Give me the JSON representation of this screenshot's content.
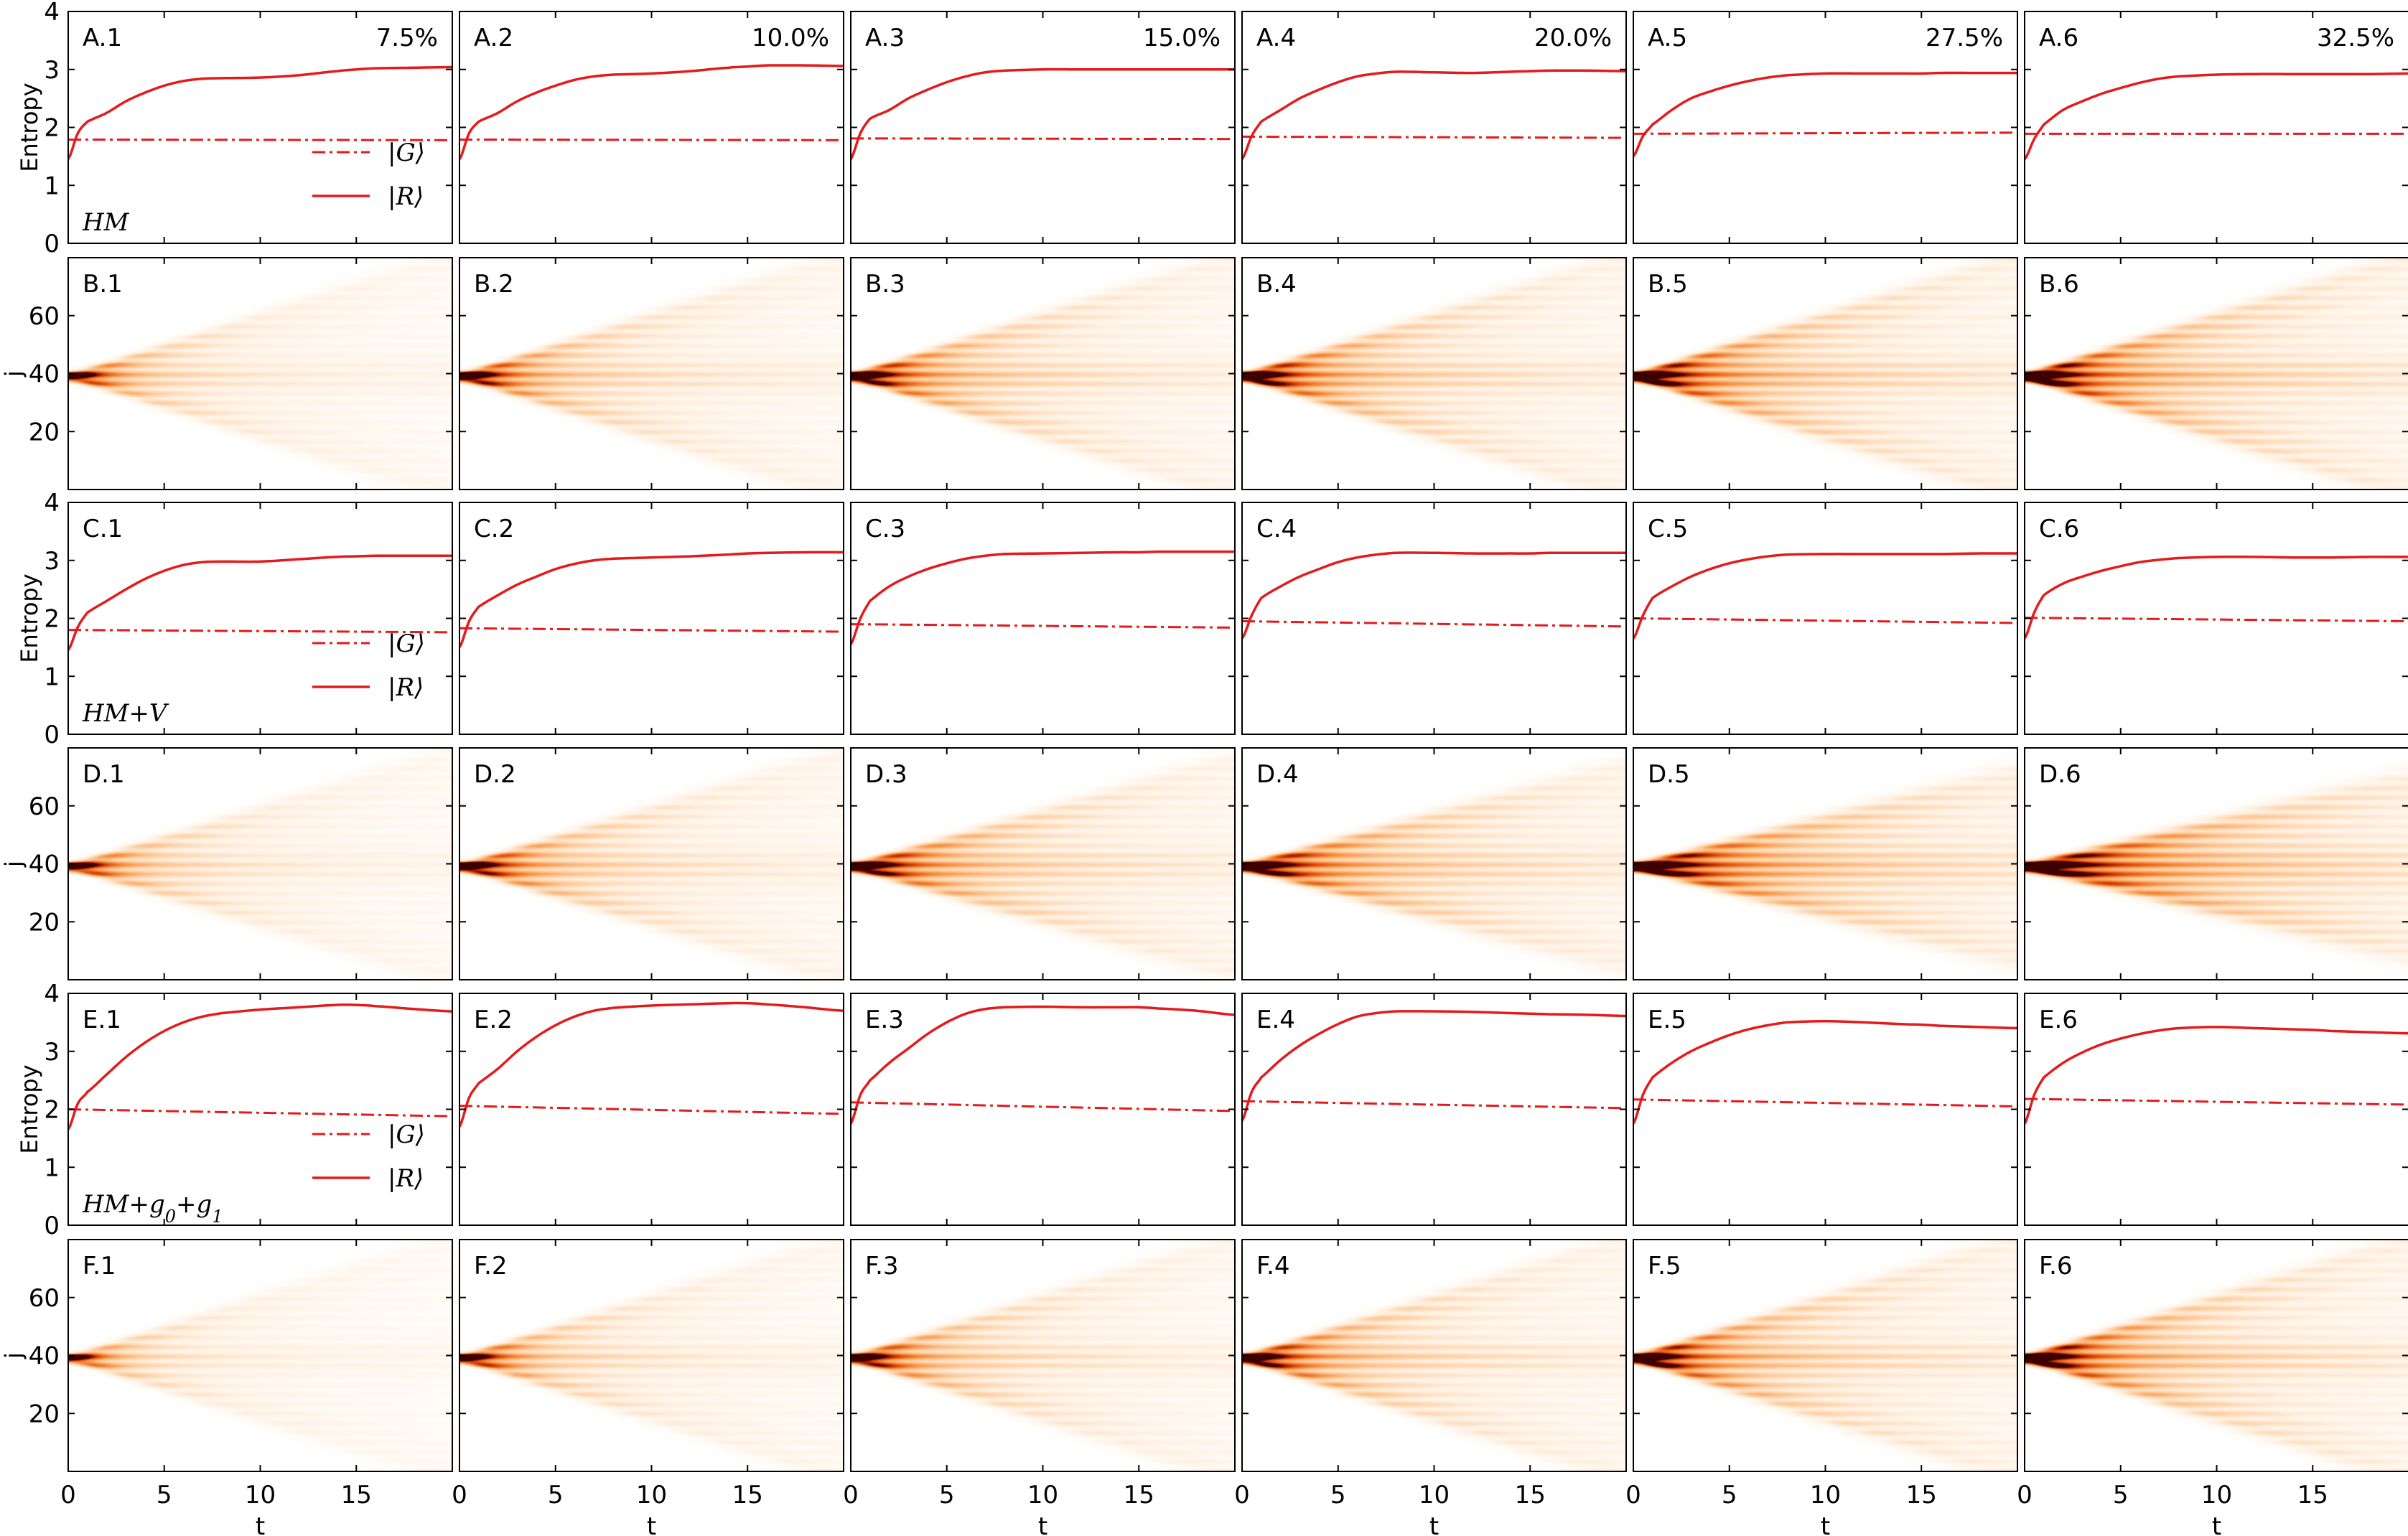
{
  "chart_data": {
    "type": "grid",
    "percents": [
      "7.5%",
      "10.0%",
      "15.0%",
      "20.0%",
      "27.5%",
      "32.5%"
    ],
    "columns": 6,
    "rows": [
      {
        "kind": "line",
        "letter": "A",
        "ylabel": "Entropy",
        "model_label": "HM",
        "legend": true
      },
      {
        "kind": "heatmap",
        "letter": "B",
        "ylabel": "j"
      },
      {
        "kind": "line",
        "letter": "C",
        "ylabel": "Entropy",
        "model_label": "HM+V",
        "legend": true
      },
      {
        "kind": "heatmap",
        "letter": "D",
        "ylabel": "j"
      },
      {
        "kind": "line",
        "letter": "E",
        "ylabel": "Entropy",
        "model_label": "HM+g0+g1",
        "legend": true
      },
      {
        "kind": "heatmap",
        "letter": "F",
        "ylabel": "j"
      }
    ],
    "panel_labels": {
      "A": [
        "A.1",
        "A.2",
        "A.3",
        "A.4",
        "A.5",
        "A.6"
      ],
      "B": [
        "B.1",
        "B.2",
        "B.3",
        "B.4",
        "B.5",
        "B.6"
      ],
      "C": [
        "C.1",
        "C.2",
        "C.3",
        "C.4",
        "C.5",
        "C.6"
      ],
      "D": [
        "D.1",
        "D.2",
        "D.3",
        "D.4",
        "D.5",
        "D.6"
      ],
      "E": [
        "E.1",
        "E.2",
        "E.3",
        "E.4",
        "E.5",
        "E.6"
      ],
      "F": [
        "F.1",
        "F.2",
        "F.3",
        "F.4",
        "F.5",
        "F.6"
      ]
    },
    "xlabel": "t",
    "x_ticks": [
      0,
      5,
      10,
      15
    ],
    "xlim": [
      0,
      20
    ],
    "entropy_ylim": [
      0,
      4
    ],
    "entropy_yticks": [
      0,
      1,
      2,
      3,
      4
    ],
    "j_ylim": [
      0,
      80
    ],
    "j_yticks": [
      20,
      40,
      60
    ],
    "legend_entries": [
      {
        "label": "|G⟩",
        "style": "dash-dot"
      },
      {
        "label": "|R⟩",
        "style": "solid"
      }
    ],
    "line_color": "#e41a1c",
    "colormap": "gist_heat_r (white → orange → dark red)",
    "entropy_t": [
      0,
      0.5,
      1,
      2,
      3,
      4,
      5,
      6,
      7,
      8,
      10,
      12,
      14,
      15,
      16,
      18,
      20
    ],
    "entropy_series": {
      "A": [
        {
          "G": [
            1.79,
            1.78
          ],
          "R": [
            1.45,
            1.9,
            2.1,
            2.25,
            2.45,
            2.6,
            2.72,
            2.8,
            2.84,
            2.85,
            2.86,
            2.9,
            2.97,
            3.0,
            3.02,
            3.03,
            3.04
          ]
        },
        {
          "G": [
            1.79,
            1.78
          ],
          "R": [
            1.45,
            1.9,
            2.1,
            2.25,
            2.45,
            2.6,
            2.72,
            2.82,
            2.88,
            2.91,
            2.93,
            2.97,
            3.03,
            3.05,
            3.07,
            3.07,
            3.06
          ]
        },
        {
          "G": [
            1.81,
            1.8
          ],
          "R": [
            1.45,
            1.9,
            2.15,
            2.3,
            2.5,
            2.65,
            2.78,
            2.88,
            2.95,
            2.98,
            3.0,
            3.0,
            3.0,
            3.0,
            3.0,
            3.0,
            3.0
          ]
        },
        {
          "G": [
            1.84,
            1.82
          ],
          "R": [
            1.45,
            1.85,
            2.1,
            2.3,
            2.5,
            2.65,
            2.78,
            2.88,
            2.93,
            2.96,
            2.95,
            2.94,
            2.96,
            2.97,
            2.98,
            2.98,
            2.97
          ]
        },
        {
          "G": [
            1.89,
            1.91
          ],
          "R": [
            1.5,
            1.85,
            2.05,
            2.3,
            2.5,
            2.62,
            2.72,
            2.8,
            2.86,
            2.9,
            2.93,
            2.93,
            2.93,
            2.93,
            2.94,
            2.94,
            2.94
          ]
        },
        {
          "G": [
            1.89,
            1.89
          ],
          "R": [
            1.45,
            1.8,
            2.05,
            2.3,
            2.45,
            2.58,
            2.68,
            2.77,
            2.84,
            2.88,
            2.91,
            2.92,
            2.92,
            2.92,
            2.92,
            2.92,
            2.93
          ]
        }
      ],
      "C": [
        {
          "G": [
            1.8,
            1.76
          ],
          "R": [
            1.45,
            1.85,
            2.1,
            2.3,
            2.5,
            2.68,
            2.82,
            2.92,
            2.97,
            2.98,
            2.98,
            3.02,
            3.06,
            3.07,
            3.08,
            3.08,
            3.08
          ]
        },
        {
          "G": [
            1.83,
            1.77
          ],
          "R": [
            1.5,
            1.95,
            2.2,
            2.4,
            2.58,
            2.72,
            2.85,
            2.94,
            3.0,
            3.03,
            3.05,
            3.07,
            3.1,
            3.12,
            3.13,
            3.14,
            3.14
          ]
        },
        {
          "G": [
            1.9,
            1.84
          ],
          "R": [
            1.55,
            2.0,
            2.3,
            2.55,
            2.72,
            2.85,
            2.95,
            3.03,
            3.08,
            3.11,
            3.12,
            3.13,
            3.14,
            3.14,
            3.15,
            3.15,
            3.15
          ]
        },
        {
          "G": [
            1.95,
            1.86
          ],
          "R": [
            1.65,
            2.05,
            2.35,
            2.55,
            2.72,
            2.85,
            2.97,
            3.05,
            3.1,
            3.13,
            3.13,
            3.12,
            3.12,
            3.12,
            3.13,
            3.13,
            3.13
          ]
        },
        {
          "G": [
            2.0,
            1.92
          ],
          "R": [
            1.65,
            2.05,
            2.35,
            2.55,
            2.72,
            2.85,
            2.95,
            3.02,
            3.07,
            3.1,
            3.11,
            3.11,
            3.11,
            3.11,
            3.11,
            3.12,
            3.12
          ]
        },
        {
          "G": [
            2.01,
            1.95
          ],
          "R": [
            1.65,
            2.1,
            2.4,
            2.6,
            2.72,
            2.82,
            2.9,
            2.97,
            3.01,
            3.04,
            3.06,
            3.06,
            3.05,
            3.05,
            3.05,
            3.06,
            3.06
          ]
        }
      ],
      "E": [
        {
          "G": [
            2.0,
            1.88
          ],
          "R": [
            1.65,
            2.1,
            2.3,
            2.6,
            2.9,
            3.15,
            3.35,
            3.5,
            3.6,
            3.66,
            3.72,
            3.76,
            3.8,
            3.8,
            3.78,
            3.73,
            3.69
          ]
        },
        {
          "G": [
            2.06,
            1.92
          ],
          "R": [
            1.7,
            2.2,
            2.45,
            2.7,
            3.0,
            3.25,
            3.45,
            3.6,
            3.7,
            3.75,
            3.79,
            3.81,
            3.83,
            3.83,
            3.81,
            3.76,
            3.7
          ]
        },
        {
          "G": [
            2.12,
            1.97
          ],
          "R": [
            1.75,
            2.25,
            2.5,
            2.8,
            3.05,
            3.3,
            3.5,
            3.65,
            3.73,
            3.76,
            3.77,
            3.76,
            3.76,
            3.76,
            3.74,
            3.7,
            3.63
          ]
        },
        {
          "G": [
            2.14,
            2.02
          ],
          "R": [
            1.8,
            2.3,
            2.55,
            2.85,
            3.1,
            3.3,
            3.47,
            3.6,
            3.66,
            3.69,
            3.69,
            3.68,
            3.66,
            3.65,
            3.64,
            3.63,
            3.61
          ]
        },
        {
          "G": [
            2.17,
            2.05
          ],
          "R": [
            1.75,
            2.25,
            2.55,
            2.8,
            3.0,
            3.15,
            3.28,
            3.38,
            3.45,
            3.5,
            3.52,
            3.5,
            3.47,
            3.46,
            3.44,
            3.42,
            3.4
          ]
        },
        {
          "G": [
            2.18,
            2.08
          ],
          "R": [
            1.75,
            2.25,
            2.55,
            2.8,
            2.98,
            3.12,
            3.22,
            3.3,
            3.36,
            3.4,
            3.42,
            3.4,
            3.38,
            3.37,
            3.35,
            3.33,
            3.31
          ]
        }
      ]
    },
    "heatmap_data": {
      "description": "Probability density over site j (0-80) versus time t (0-20), initial peak at j=39 spreading into rays",
      "center_j": 39,
      "intensity": {
        "B": [
          0.55,
          0.7,
          0.8,
          0.85,
          0.95,
          1.0
        ],
        "D": [
          0.55,
          0.7,
          0.8,
          0.85,
          0.95,
          1.0
        ],
        "F": [
          0.45,
          0.6,
          0.7,
          0.8,
          0.9,
          0.95
        ]
      },
      "spread_speed": {
        "B": [
          2.0,
          2.0,
          2.0,
          2.0,
          2.0,
          2.0
        ],
        "D": [
          1.9,
          1.9,
          1.8,
          1.7,
          1.6,
          1.5
        ],
        "F": [
          2.0,
          2.0,
          2.0,
          2.0,
          2.0,
          2.0
        ]
      }
    }
  }
}
